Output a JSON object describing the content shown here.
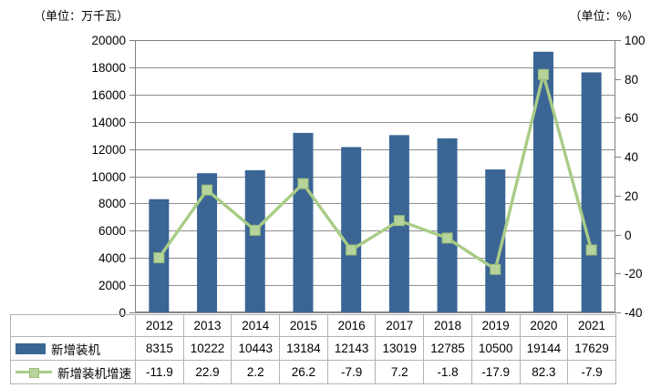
{
  "chart": {
    "unit_left": "（单位：万千瓦）",
    "unit_right": "（单位：%）"
  },
  "chart_data": {
    "type": "bar+line",
    "dual_axis": true,
    "categories": [
      "2012",
      "2013",
      "2014",
      "2015",
      "2016",
      "2017",
      "2018",
      "2019",
      "2020",
      "2021"
    ],
    "series": [
      {
        "name": "新增装机",
        "type": "bar",
        "axis": "left",
        "values": [
          8315,
          10222,
          10443,
          13184,
          12143,
          13019,
          12785,
          10500,
          19144,
          17629
        ]
      },
      {
        "name": "新增装机增速",
        "type": "line",
        "axis": "right",
        "marker": "square",
        "values": [
          -11.9,
          22.9,
          2.2,
          26.2,
          -7.9,
          7.2,
          -1.8,
          -17.9,
          82.3,
          -7.9
        ]
      }
    ],
    "left_axis": {
      "title": "（单位：万千瓦）",
      "min": 0,
      "max": 20000,
      "step": 2000,
      "tick_labels": [
        "0",
        "2000",
        "4000",
        "6000",
        "8000",
        "10000",
        "12000",
        "14000",
        "16000",
        "18000",
        "20000"
      ]
    },
    "right_axis": {
      "title": "（单位：%）",
      "min": -40,
      "max": 100,
      "step": 20,
      "tick_labels": [
        "-40",
        "-20",
        "0",
        "20",
        "40",
        "60",
        "80",
        "100"
      ]
    },
    "grid": true,
    "legend_position": "data-table-left",
    "data_table_shown": true
  },
  "colors": {
    "bar": "#3a6595",
    "line": "#a9cb87",
    "marker": "#b5d39b",
    "marker_edge": "#9cbe76",
    "gridline": "#8e8e8e",
    "plot_border": "#808080",
    "table_border": "#b3b3b3",
    "text": "#000000"
  }
}
